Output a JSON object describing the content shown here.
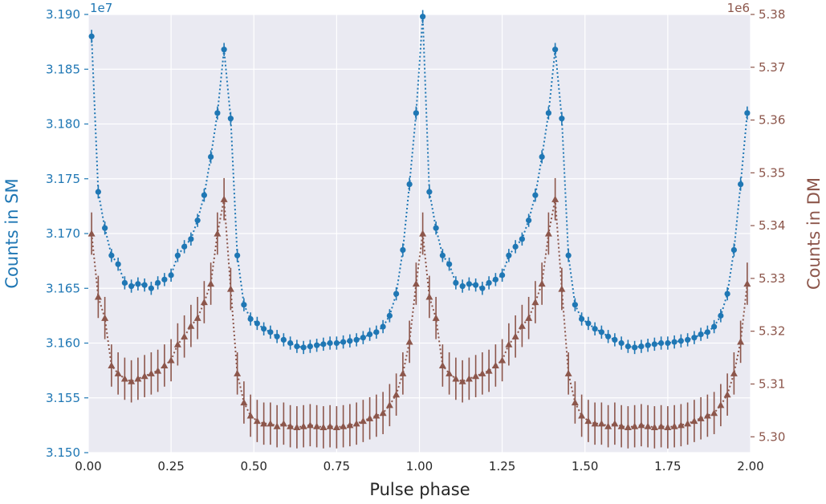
{
  "chart_data": {
    "type": "line",
    "style": "errorbar",
    "xlabel": "Pulse phase",
    "xlim": [
      0.0,
      2.0
    ],
    "x_ticks": [
      "0.00",
      "0.25",
      "0.50",
      "0.75",
      "1.00",
      "1.25",
      "1.50",
      "1.75",
      "2.00"
    ],
    "grid": true,
    "left_axis": {
      "label": "Counts in SM",
      "offset_text": "1e7",
      "ylim": [
        3.15,
        3.19
      ],
      "tick_labels": [
        "3.150",
        "3.155",
        "3.160",
        "3.165",
        "3.170",
        "3.175",
        "3.180",
        "3.185",
        "3.190"
      ],
      "color": "#1f77b4"
    },
    "right_axis": {
      "label": "Counts in DM",
      "offset_text": "1e6",
      "ylim": [
        5.297,
        5.38
      ],
      "tick_labels": [
        "5.30",
        "5.31",
        "5.32",
        "5.33",
        "5.34",
        "5.35",
        "5.36",
        "5.37",
        "5.38"
      ],
      "color": "#8c564b"
    },
    "series": [
      {
        "axis": "left",
        "marker": "circle",
        "color": "#1f77b4",
        "x": [
          0.01,
          0.03,
          0.05,
          0.07,
          0.09,
          0.11,
          0.13,
          0.15,
          0.17,
          0.19,
          0.21,
          0.23,
          0.25,
          0.27,
          0.29,
          0.31,
          0.33,
          0.35,
          0.37,
          0.39,
          0.41,
          0.43,
          0.45,
          0.47,
          0.49,
          0.51,
          0.53,
          0.55,
          0.57,
          0.59,
          0.61,
          0.63,
          0.65,
          0.67,
          0.69,
          0.71,
          0.73,
          0.75,
          0.77,
          0.79,
          0.81,
          0.83,
          0.85,
          0.87,
          0.89,
          0.91,
          0.93,
          0.95,
          0.97,
          0.99,
          1.01,
          1.03,
          1.05,
          1.07,
          1.09,
          1.11,
          1.13,
          1.15,
          1.17,
          1.19,
          1.21,
          1.23,
          1.25,
          1.27,
          1.29,
          1.31,
          1.33,
          1.35,
          1.37,
          1.39,
          1.41,
          1.43,
          1.45,
          1.47,
          1.49,
          1.51,
          1.53,
          1.55,
          1.57,
          1.59,
          1.61,
          1.63,
          1.65,
          1.67,
          1.69,
          1.71,
          1.73,
          1.75,
          1.77,
          1.79,
          1.81,
          1.83,
          1.85,
          1.87,
          1.89,
          1.91,
          1.93,
          1.95,
          1.97,
          1.99
        ],
        "y": [
          3.188,
          3.1738,
          3.1705,
          3.168,
          3.1672,
          3.1655,
          3.1652,
          3.1654,
          3.1653,
          3.165,
          3.1655,
          3.1658,
          3.1662,
          3.168,
          3.1688,
          3.1695,
          3.1712,
          3.1735,
          3.177,
          3.181,
          3.1868,
          3.1805,
          3.168,
          3.1635,
          3.1622,
          3.1618,
          3.1613,
          3.161,
          3.1606,
          3.1603,
          3.16,
          3.1597,
          3.1596,
          3.1597,
          3.1598,
          3.1599,
          3.16,
          3.16,
          3.1601,
          3.1602,
          3.1603,
          3.1605,
          3.1608,
          3.161,
          3.1615,
          3.1625,
          3.1645,
          3.1685,
          3.1745,
          3.181,
          3.1898,
          3.1738,
          3.1705,
          3.168,
          3.1672,
          3.1655,
          3.1652,
          3.1654,
          3.1653,
          3.165,
          3.1655,
          3.1658,
          3.1662,
          3.168,
          3.1688,
          3.1695,
          3.1712,
          3.1735,
          3.177,
          3.181,
          3.1868,
          3.1805,
          3.168,
          3.1635,
          3.1622,
          3.1618,
          3.1613,
          3.161,
          3.1606,
          3.1603,
          3.16,
          3.1597,
          3.1596,
          3.1597,
          3.1598,
          3.1599,
          3.16,
          3.16,
          3.1601,
          3.1602,
          3.1603,
          3.1605,
          3.1608,
          3.161,
          3.1615,
          3.1625,
          3.1645,
          3.1685,
          3.1745,
          3.181
        ],
        "err": 0.0006
      },
      {
        "axis": "right",
        "marker": "triangle",
        "color": "#8c564b",
        "x": [
          0.01,
          0.03,
          0.05,
          0.07,
          0.09,
          0.11,
          0.13,
          0.15,
          0.17,
          0.19,
          0.21,
          0.23,
          0.25,
          0.27,
          0.29,
          0.31,
          0.33,
          0.35,
          0.37,
          0.39,
          0.41,
          0.43,
          0.45,
          0.47,
          0.49,
          0.51,
          0.53,
          0.55,
          0.57,
          0.59,
          0.61,
          0.63,
          0.65,
          0.67,
          0.69,
          0.71,
          0.73,
          0.75,
          0.77,
          0.79,
          0.81,
          0.83,
          0.85,
          0.87,
          0.89,
          0.91,
          0.93,
          0.95,
          0.97,
          0.99,
          1.01,
          1.03,
          1.05,
          1.07,
          1.09,
          1.11,
          1.13,
          1.15,
          1.17,
          1.19,
          1.21,
          1.23,
          1.25,
          1.27,
          1.29,
          1.31,
          1.33,
          1.35,
          1.37,
          1.39,
          1.41,
          1.43,
          1.45,
          1.47,
          1.49,
          1.51,
          1.53,
          1.55,
          1.57,
          1.59,
          1.61,
          1.63,
          1.65,
          1.67,
          1.69,
          1.71,
          1.73,
          1.75,
          1.77,
          1.79,
          1.81,
          1.83,
          1.85,
          1.87,
          1.89,
          1.91,
          1.93,
          1.95,
          1.97,
          1.99
        ],
        "y": [
          5.3385,
          5.3265,
          5.3225,
          5.3135,
          5.312,
          5.311,
          5.3105,
          5.311,
          5.3115,
          5.312,
          5.3125,
          5.3135,
          5.3145,
          5.3175,
          5.319,
          5.321,
          5.3225,
          5.3255,
          5.329,
          5.3385,
          5.345,
          5.328,
          5.312,
          5.3065,
          5.304,
          5.303,
          5.3025,
          5.3025,
          5.302,
          5.3025,
          5.302,
          5.3018,
          5.302,
          5.3022,
          5.302,
          5.3018,
          5.302,
          5.3018,
          5.302,
          5.3022,
          5.3025,
          5.303,
          5.3035,
          5.304,
          5.3045,
          5.306,
          5.308,
          5.312,
          5.318,
          5.329,
          5.3385,
          5.3265,
          5.3225,
          5.3135,
          5.312,
          5.311,
          5.3105,
          5.311,
          5.3115,
          5.312,
          5.3125,
          5.3135,
          5.3145,
          5.3175,
          5.319,
          5.321,
          5.3225,
          5.3255,
          5.329,
          5.3385,
          5.345,
          5.328,
          5.312,
          5.3065,
          5.304,
          5.303,
          5.3025,
          5.3025,
          5.302,
          5.3025,
          5.302,
          5.3018,
          5.302,
          5.3022,
          5.302,
          5.3018,
          5.302,
          5.3018,
          5.302,
          5.3022,
          5.3025,
          5.303,
          5.3035,
          5.304,
          5.3045,
          5.306,
          5.308,
          5.312,
          5.318,
          5.329
        ],
        "err": 0.004
      }
    ]
  }
}
